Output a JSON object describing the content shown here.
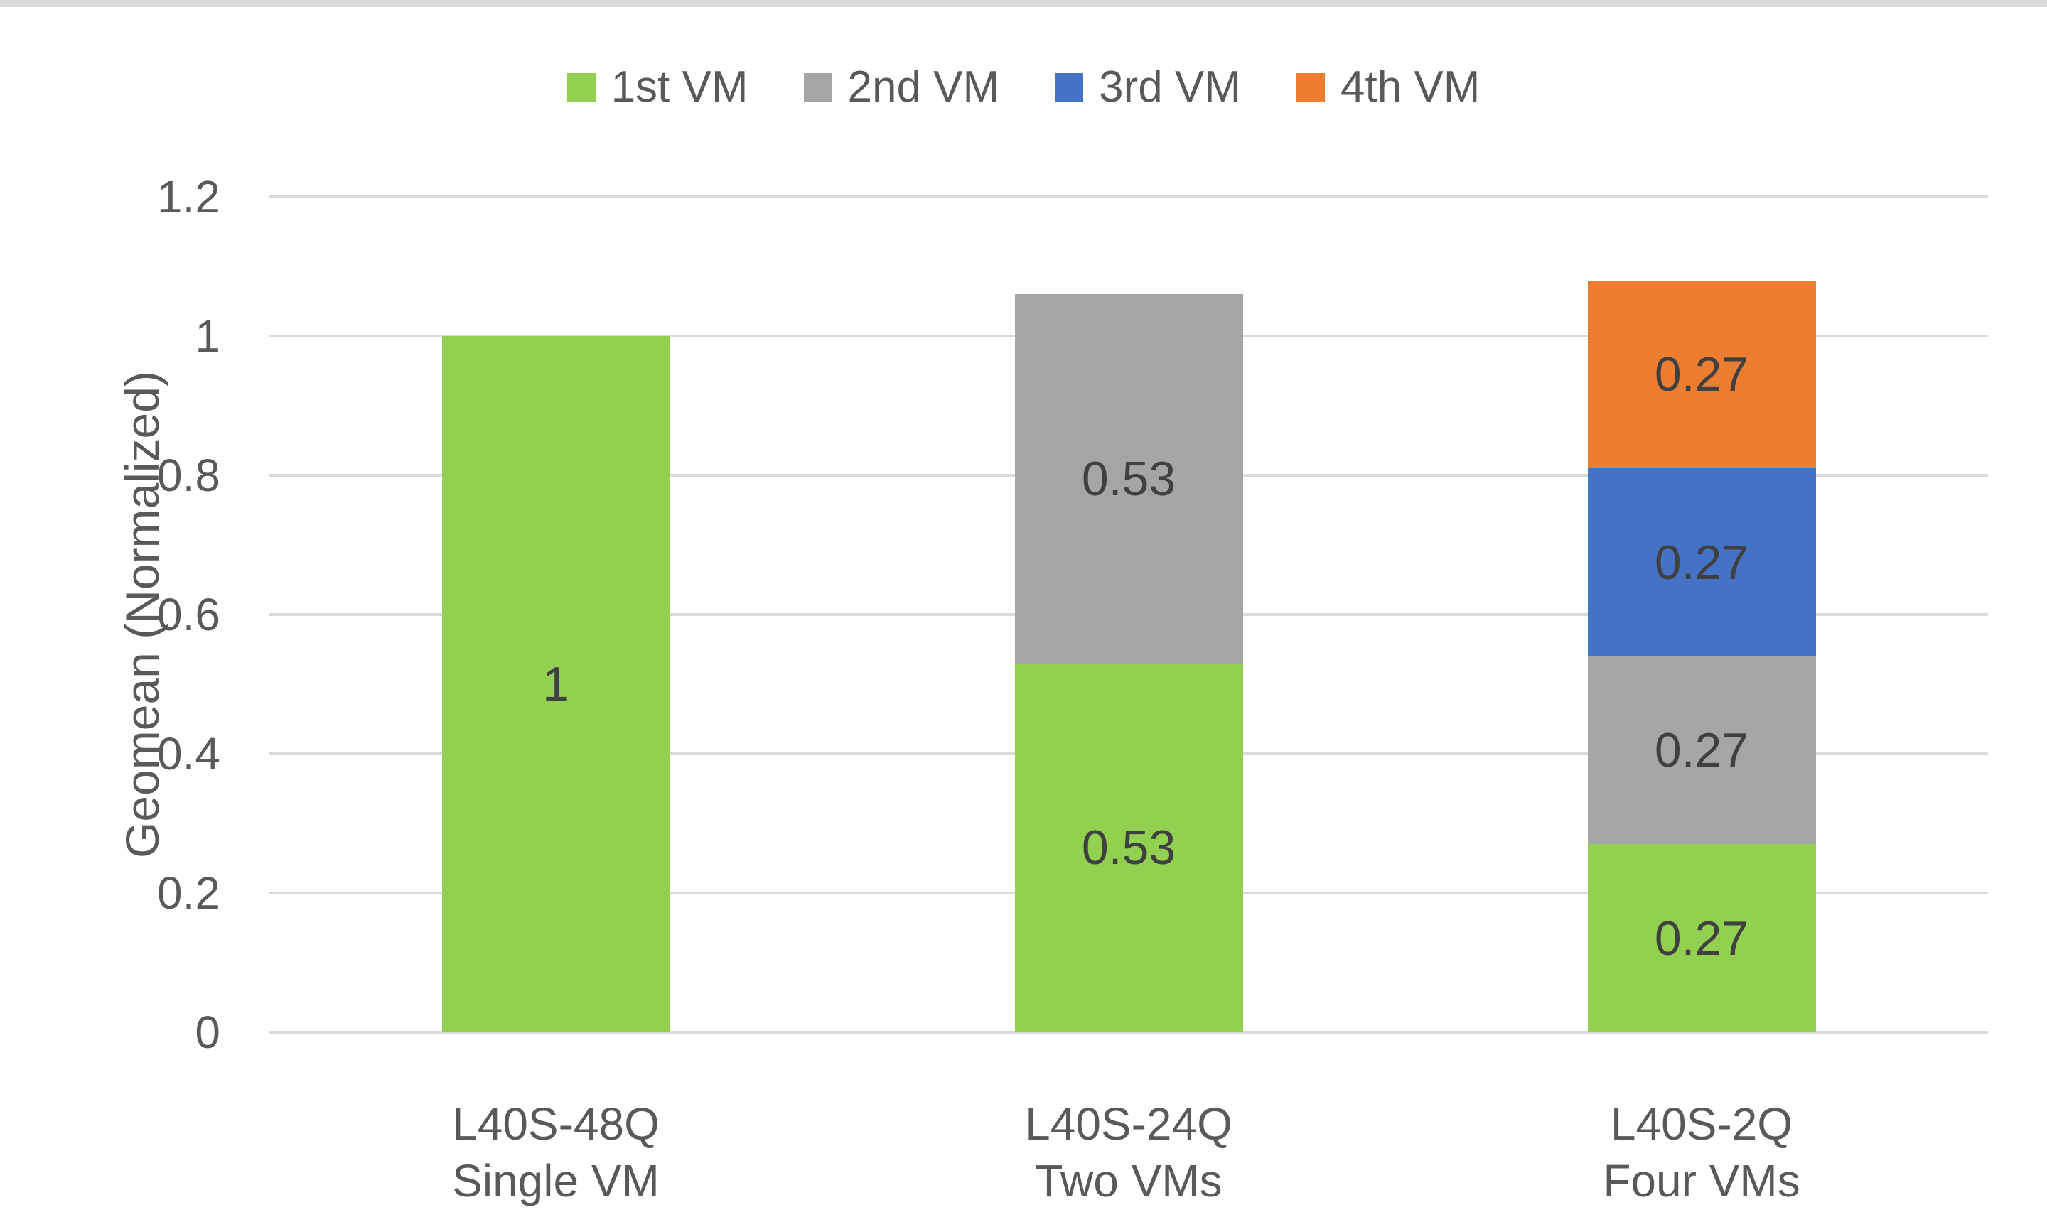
{
  "page": {
    "background": "#FFFFFF",
    "top_strip_color": "#D9D9D9"
  },
  "chart_data": {
    "type": "bar",
    "stacked": true,
    "title": "",
    "xlabel": "",
    "ylabel": "Geomean (Normalized)",
    "ylim": [
      0,
      1.2
    ],
    "grid": true,
    "legend_position": "top-center",
    "yticks": [
      {
        "value": 0,
        "label": "0"
      },
      {
        "value": 0.2,
        "label": "0.2"
      },
      {
        "value": 0.4,
        "label": "0.4"
      },
      {
        "value": 0.6,
        "label": "0.6"
      },
      {
        "value": 0.8,
        "label": "0.8"
      },
      {
        "value": 1,
        "label": "1"
      },
      {
        "value": 1.2,
        "label": "1.2"
      }
    ],
    "categories": [
      {
        "line1": "L40S-48Q",
        "line2": "Single VM"
      },
      {
        "line1": "L40S-24Q",
        "line2": "Two VMs"
      },
      {
        "line1": "L40S-2Q",
        "line2": "Four VMs"
      }
    ],
    "series": [
      {
        "name": "1st VM",
        "color": "#92D050",
        "values": [
          1,
          0.53,
          0.27
        ],
        "labels": [
          "1",
          "0.53",
          "0.27"
        ]
      },
      {
        "name": "2nd VM",
        "color": "#A5A5A5",
        "values": [
          null,
          0.53,
          0.27
        ],
        "labels": [
          null,
          "0.53",
          "0.27"
        ]
      },
      {
        "name": "3rd VM",
        "color": "#4472C4",
        "values": [
          null,
          null,
          0.27
        ],
        "labels": [
          null,
          null,
          "0.27"
        ]
      },
      {
        "name": "4th VM",
        "color": "#ED7D31",
        "values": [
          null,
          null,
          0.27
        ],
        "labels": [
          null,
          null,
          "0.27"
        ]
      }
    ],
    "colors": {
      "gridline": "#D9D9D9",
      "axis_text": "#595959",
      "data_label_text": "#404040"
    }
  }
}
